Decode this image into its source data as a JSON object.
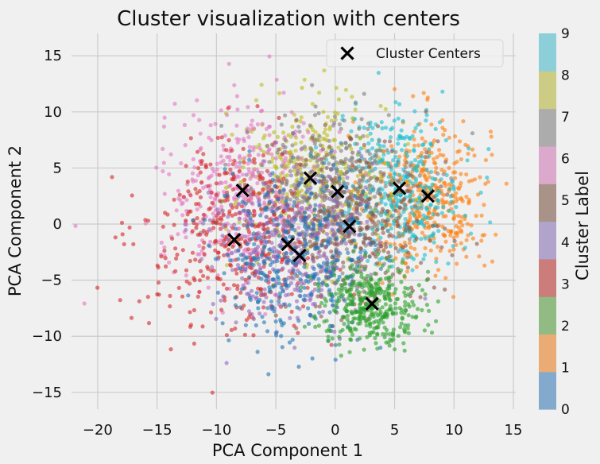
{
  "chart_data": {
    "type": "scatter",
    "title": "Cluster visualization with centers",
    "xlabel": "PCA Component 1",
    "ylabel": "PCA Component 2",
    "xlim": [
      -22.2,
      15.2
    ],
    "ylim": [
      -16.5,
      17.0
    ],
    "xticks": [
      -20,
      -15,
      -10,
      -5,
      0,
      5,
      10,
      15
    ],
    "yticks": [
      -15,
      -10,
      -5,
      0,
      5,
      10,
      15
    ],
    "xtick_labels": [
      "−20",
      "−15",
      "−10",
      "−5",
      "0",
      "5",
      "10",
      "15"
    ],
    "ytick_labels": [
      "−15",
      "−10",
      "−5",
      "0",
      "5",
      "10",
      "15"
    ],
    "grid": true,
    "legend": {
      "position": "upper right",
      "entries": [
        {
          "label": "Cluster Centers",
          "marker": "x",
          "color": "#000000"
        }
      ]
    },
    "colorbar": {
      "label": "Cluster Label",
      "ticks": [
        0,
        1,
        2,
        3,
        4,
        5,
        6,
        7,
        8,
        9
      ],
      "tick_labels": [
        "0",
        "1",
        "2",
        "3",
        "4",
        "5",
        "6",
        "7",
        "8",
        "9"
      ],
      "colors": [
        "#83a9cc",
        "#ebab74",
        "#91bb82",
        "#cc7c7a",
        "#b0a4cc",
        "#a99288",
        "#dba9cc",
        "#acacac",
        "#cccc84",
        "#8dcfd9"
      ]
    },
    "point_alpha": 0.6,
    "cluster_colors": [
      "#1f77b4",
      "#ff7f0e",
      "#2ca02c",
      "#d62728",
      "#9467bd",
      "#8c564b",
      "#e377c2",
      "#7f7f7f",
      "#bcbd22",
      "#17becf"
    ],
    "clusters": [
      {
        "label": 0,
        "center": [
          -3.0,
          -2.8
        ]
      },
      {
        "label": 1,
        "center": [
          7.8,
          2.5
        ]
      },
      {
        "label": 2,
        "center": [
          3.1,
          -7.1
        ]
      },
      {
        "label": 3,
        "center": [
          -8.5,
          -1.4
        ]
      },
      {
        "label": 4,
        "center": [
          -4.0,
          -1.8
        ]
      },
      {
        "label": 5,
        "center": [
          1.2,
          -0.2
        ]
      },
      {
        "label": 6,
        "center": [
          -7.8,
          3.0
        ]
      },
      {
        "label": 7,
        "center": [
          0.2,
          2.9
        ]
      },
      {
        "label": 8,
        "center": [
          -2.1,
          4.1
        ]
      },
      {
        "label": 9,
        "center": [
          5.4,
          3.2
        ]
      }
    ]
  }
}
